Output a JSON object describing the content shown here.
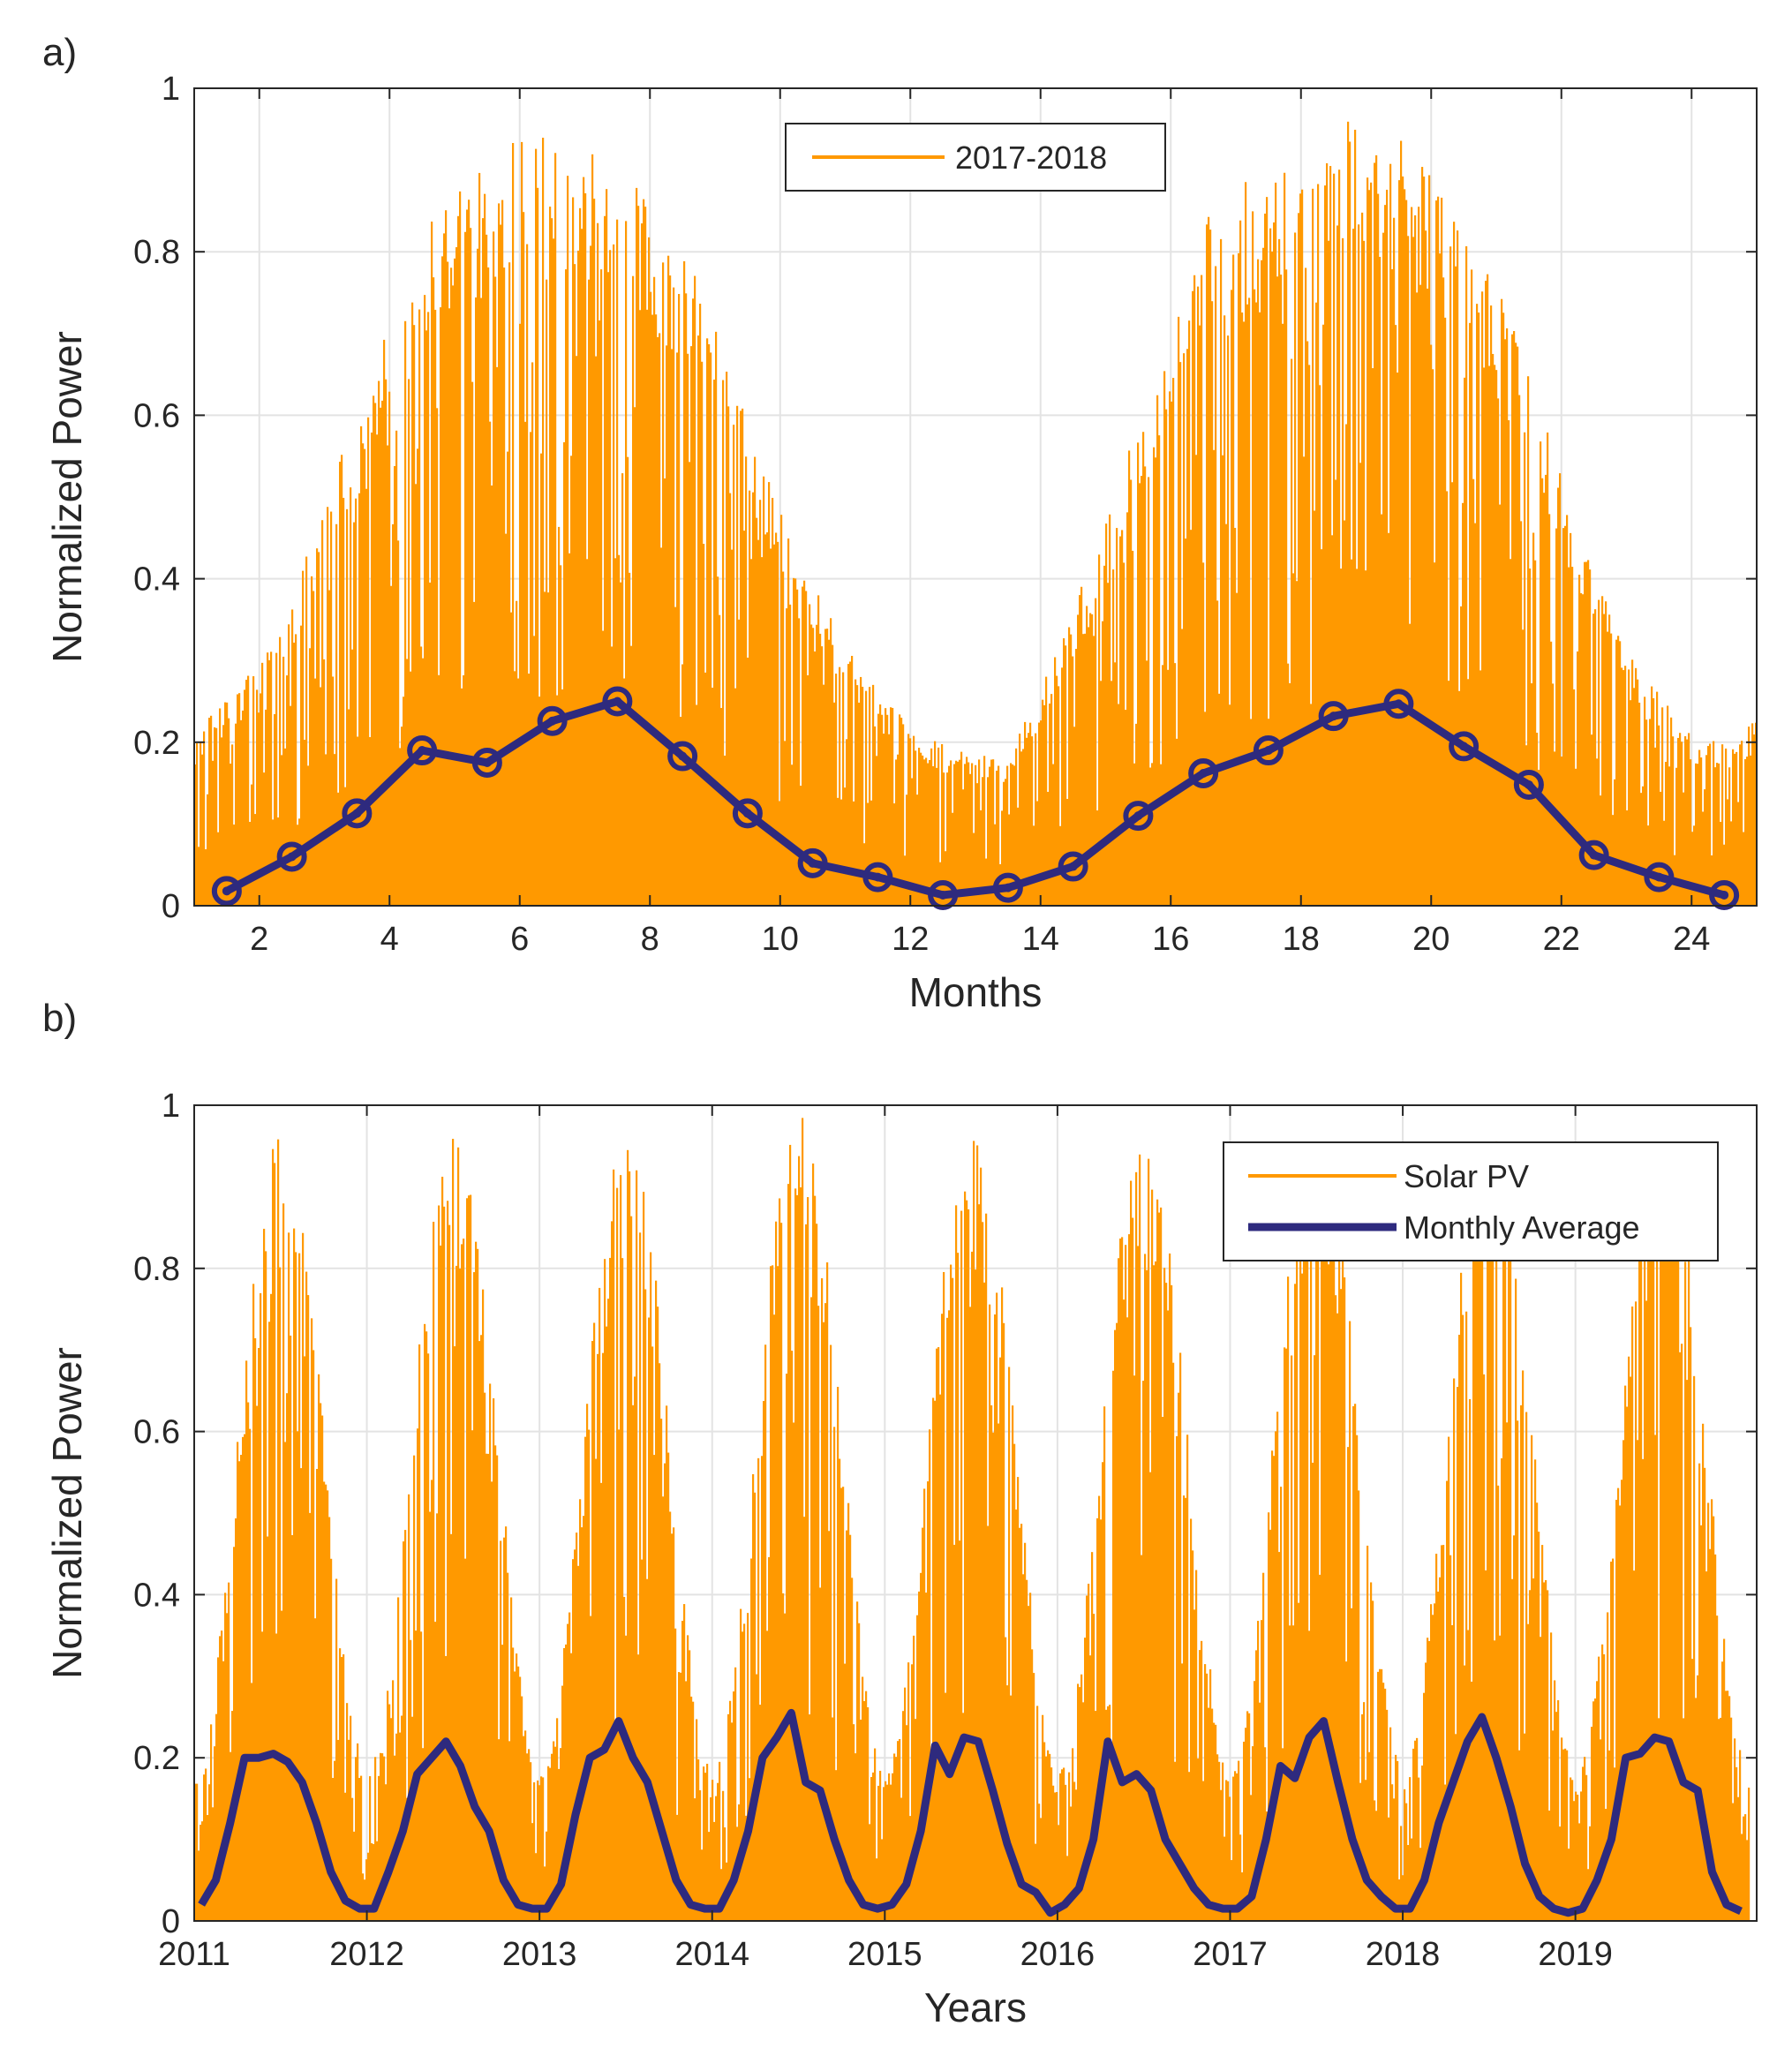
{
  "figure": {
    "panel_a_label": "a)",
    "panel_b_label": "b)"
  },
  "colors": {
    "daily": "#FF9900",
    "monthly": "#2E2A7E",
    "grid": "#E3E3E3",
    "axes": "#262626",
    "legend_edge": "#262626"
  },
  "chart_data": [
    {
      "type": "bar",
      "panel": "a)",
      "xlabel": "Months",
      "ylabel": "Normalized Power",
      "xlim": [
        1,
        25
      ],
      "ylim": [
        0,
        1
      ],
      "xticks": [
        2,
        4,
        6,
        8,
        10,
        12,
        14,
        16,
        18,
        20,
        22,
        24
      ],
      "yticks": [
        0,
        0.2,
        0.4,
        0.6,
        0.8,
        1
      ],
      "yticklabels": [
        "0",
        "0.2",
        "0.4",
        "0.6",
        "0.8",
        "1"
      ],
      "grid": true,
      "legend": {
        "placement": "top-center",
        "entries": [
          "2017-2018"
        ]
      },
      "series": [
        {
          "name": "2017-2018",
          "kind": "daily-bars",
          "color": "#FF9900",
          "x_start": 1,
          "x_end": 25,
          "envelope_x": [
            1,
            1.5,
            2,
            2.5,
            3,
            3.5,
            4,
            4.5,
            5,
            5.5,
            6,
            6.5,
            7,
            7.5,
            8,
            8.5,
            9,
            9.5,
            10,
            10.5,
            11,
            11.5,
            12,
            12.5,
            13,
            13.5,
            14,
            14.5,
            15,
            15.5,
            16,
            16.5,
            17,
            17.5,
            18,
            18.5,
            19,
            19.5,
            20,
            20.5,
            21,
            21.5,
            22,
            22.5,
            23,
            23.5,
            24,
            24.5,
            25
          ],
          "envelope_max": [
            0.21,
            0.26,
            0.3,
            0.37,
            0.52,
            0.6,
            0.72,
            0.84,
            0.89,
            0.9,
            0.99,
            0.96,
            0.92,
            0.95,
            0.85,
            0.8,
            0.72,
            0.6,
            0.48,
            0.39,
            0.32,
            0.26,
            0.22,
            0.2,
            0.18,
            0.2,
            0.27,
            0.37,
            0.47,
            0.6,
            0.7,
            0.85,
            0.88,
            0.9,
            0.94,
            0.96,
            0.97,
            0.94,
            0.89,
            0.83,
            0.76,
            0.65,
            0.52,
            0.41,
            0.31,
            0.26,
            0.21,
            0.2,
            0.23
          ]
        },
        {
          "name": "",
          "kind": "monthly-average",
          "color": "#2E2A7E",
          "marker": "circle",
          "x": [
            1.5,
            2.5,
            3.5,
            4.5,
            5.5,
            6.5,
            7.5,
            8.5,
            9.5,
            10.5,
            11.5,
            12.5,
            13.5,
            14.5,
            15.5,
            16.5,
            17.5,
            18.5,
            19.5,
            20.5,
            21.5,
            22.5,
            23.5,
            24.5
          ],
          "y": [
            0.018,
            0.06,
            0.113,
            0.19,
            0.175,
            0.226,
            0.25,
            0.183,
            0.113,
            0.052,
            0.035,
            0.013,
            0.022,
            0.048,
            0.11,
            0.162,
            0.19,
            0.232,
            0.247,
            0.195,
            0.148,
            0.062,
            0.035,
            0.013
          ]
        }
      ]
    },
    {
      "type": "bar",
      "panel": "b)",
      "xlabel": "Years",
      "ylabel": "Normalized Power",
      "xlim": [
        2011,
        2020.05
      ],
      "ylim": [
        0,
        1
      ],
      "xticks": [
        2011,
        2012,
        2013,
        2014,
        2015,
        2016,
        2017,
        2018,
        2019
      ],
      "xticklabels": [
        "2011",
        "2012",
        "2013",
        "2014",
        "2015",
        "2016",
        "2017",
        "2018",
        "2019"
      ],
      "yticks": [
        0,
        0.2,
        0.4,
        0.6,
        0.8,
        1
      ],
      "yticklabels": [
        "0",
        "0.2",
        "0.4",
        "0.6",
        "0.8",
        "1"
      ],
      "grid": true,
      "legend": {
        "placement": "top-right",
        "entries": [
          "Solar PV",
          "Monthly Average"
        ]
      },
      "series": [
        {
          "name": "Solar PV",
          "kind": "daily-bars",
          "color": "#FF9900",
          "x_start": 2011,
          "x_end": 2020,
          "annual_peak": [
            0.97,
            0.97,
            0.97,
            0.99,
            0.99,
            0.97,
            0.99,
            0.98,
            0.99
          ],
          "annual_trough": 0.18
        },
        {
          "name": "Monthly Average",
          "kind": "monthly-average",
          "color": "#2E2A7E",
          "months_per_year": 12,
          "y": [
            0.02,
            0.05,
            0.12,
            0.2,
            0.2,
            0.205,
            0.195,
            0.17,
            0.12,
            0.06,
            0.025,
            0.015,
            0.015,
            0.06,
            0.11,
            0.18,
            0.2,
            0.22,
            0.19,
            0.14,
            0.11,
            0.05,
            0.02,
            0.015,
            0.015,
            0.045,
            0.13,
            0.2,
            0.21,
            0.245,
            0.2,
            0.17,
            0.11,
            0.05,
            0.02,
            0.015,
            0.015,
            0.05,
            0.11,
            0.2,
            0.225,
            0.255,
            0.17,
            0.16,
            0.1,
            0.05,
            0.02,
            0.015,
            0.02,
            0.045,
            0.11,
            0.215,
            0.18,
            0.225,
            0.22,
            0.16,
            0.095,
            0.045,
            0.035,
            0.01,
            0.02,
            0.04,
            0.1,
            0.22,
            0.17,
            0.18,
            0.16,
            0.1,
            0.07,
            0.04,
            0.02,
            0.015,
            0.015,
            0.03,
            0.1,
            0.19,
            0.175,
            0.225,
            0.245,
            0.17,
            0.1,
            0.05,
            0.03,
            0.015,
            0.015,
            0.05,
            0.12,
            0.17,
            0.22,
            0.25,
            0.2,
            0.14,
            0.07,
            0.03,
            0.015,
            0.01,
            0.015,
            0.05,
            0.1,
            0.2,
            0.205,
            0.225,
            0.22,
            0.17,
            0.16,
            0.06,
            0.02,
            0.012
          ]
        }
      ]
    }
  ]
}
